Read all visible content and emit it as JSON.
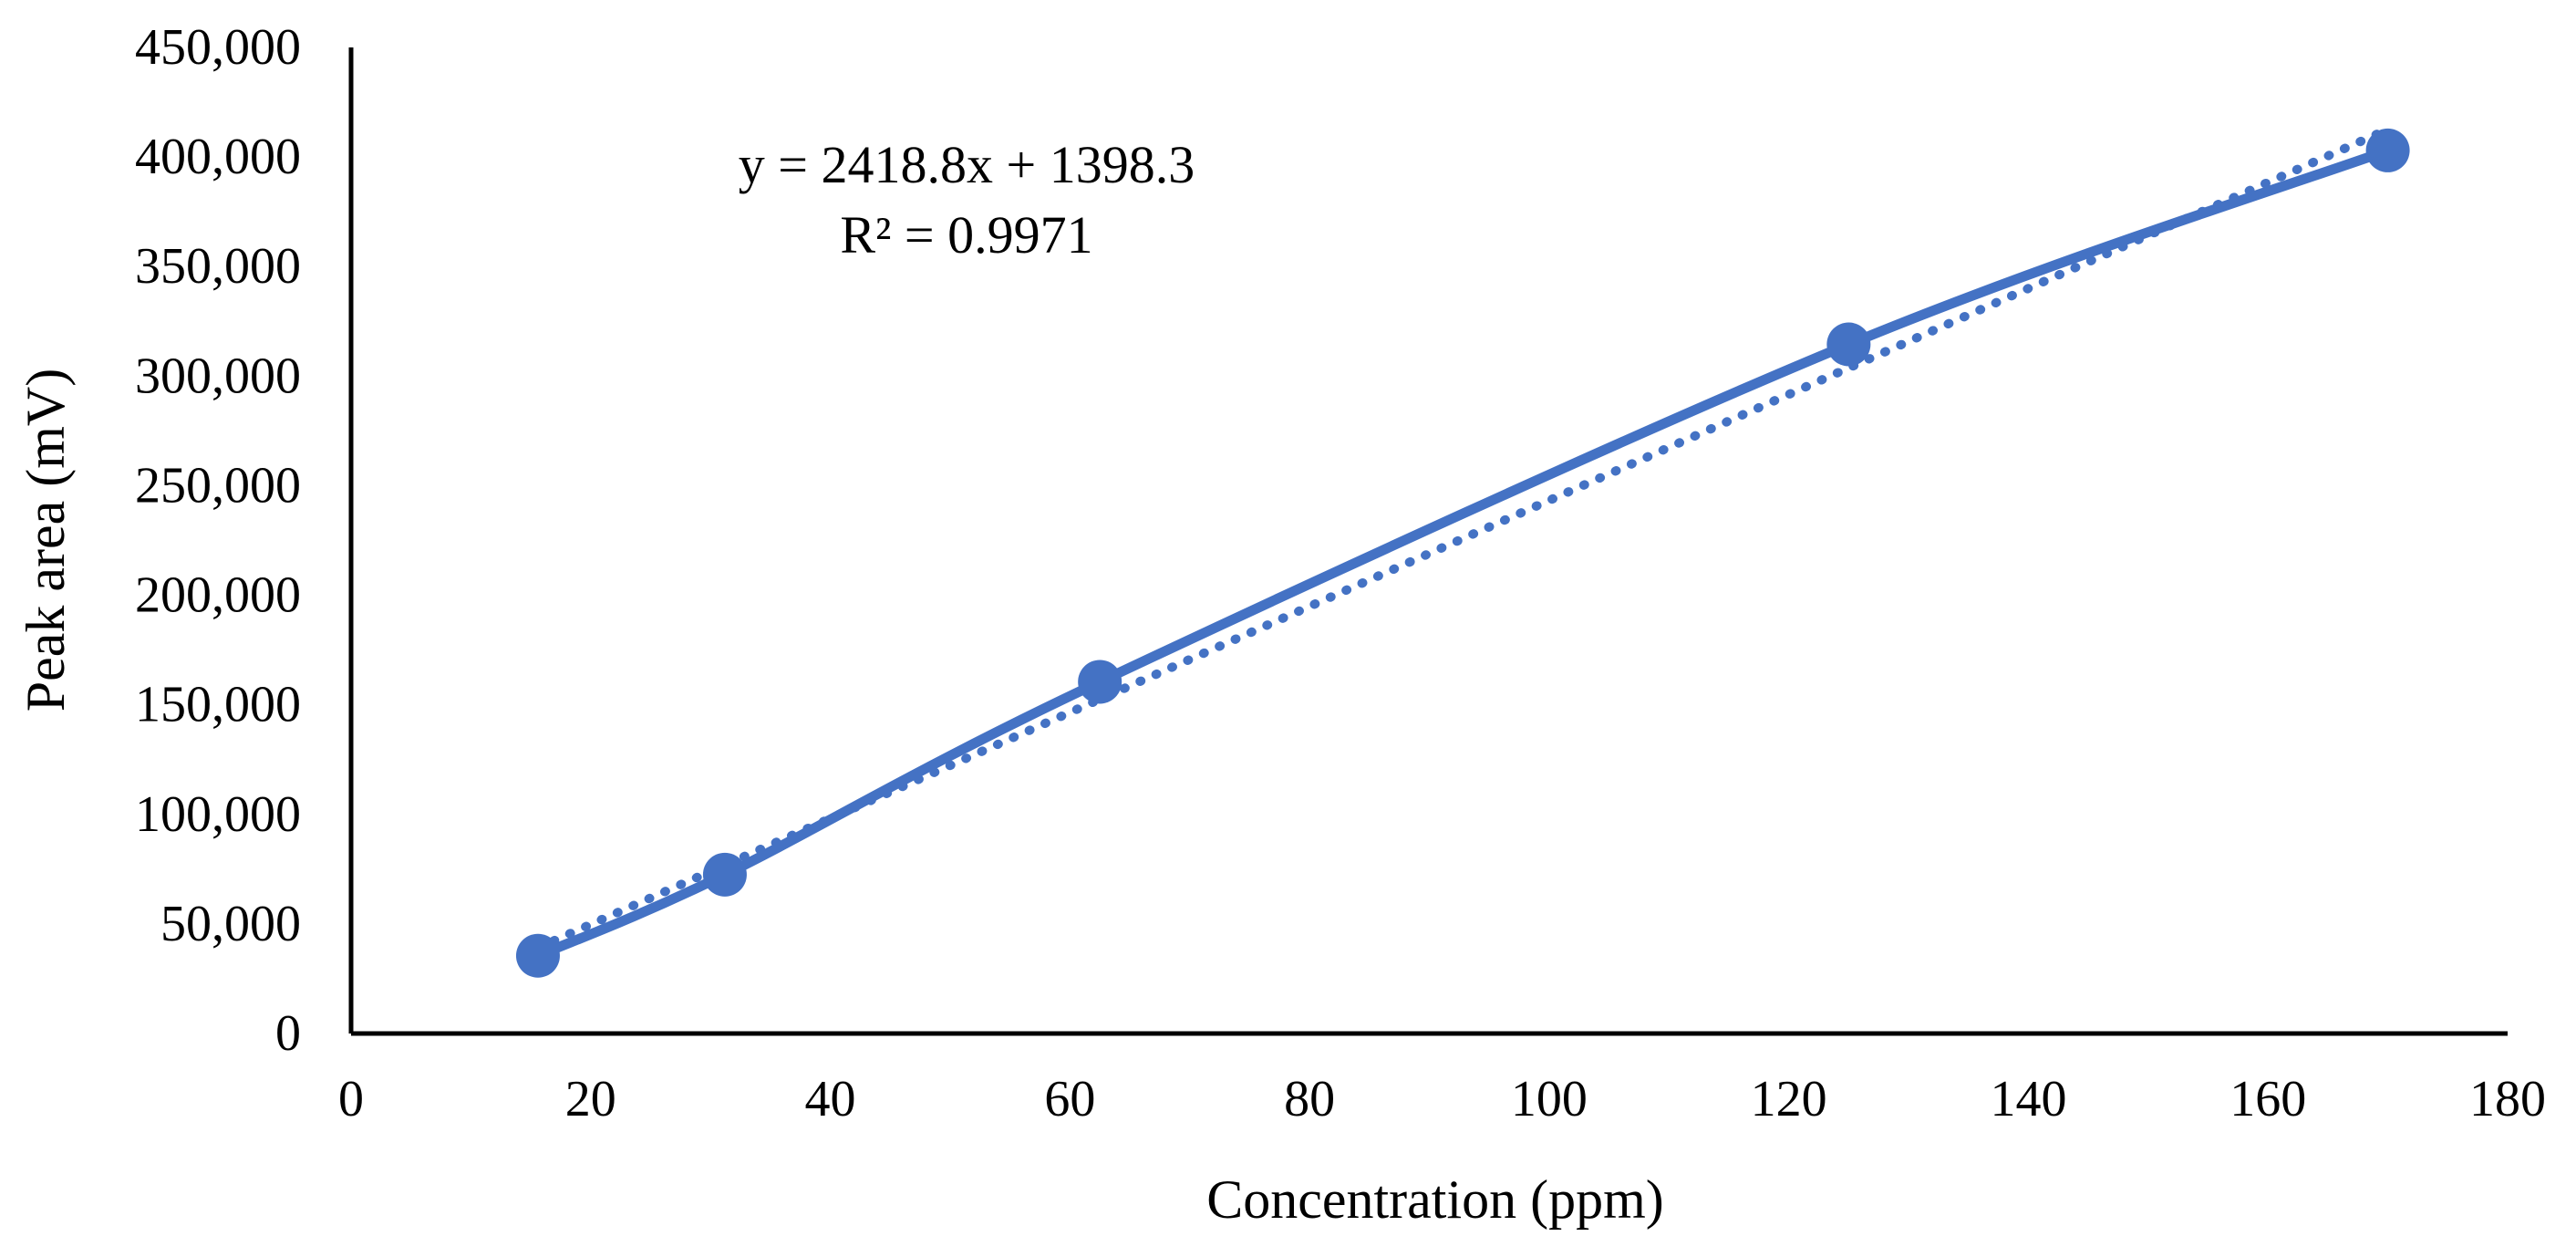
{
  "chart_data": {
    "type": "scatter",
    "title": "",
    "xlabel": "Concentration (ppm)",
    "ylabel": "Peak area (mV)",
    "xlim": [
      0,
      180
    ],
    "ylim": [
      0,
      450000
    ],
    "x_ticks": [
      0,
      20,
      40,
      60,
      80,
      100,
      120,
      140,
      160,
      180
    ],
    "x_tick_labels": [
      "0",
      "20",
      "40",
      "60",
      "80",
      "100",
      "120",
      "140",
      "160",
      "180"
    ],
    "y_ticks": [
      0,
      50000,
      100000,
      150000,
      200000,
      250000,
      300000,
      350000,
      400000,
      450000
    ],
    "y_tick_labels": [
      "0",
      "50,000",
      "100,000",
      "150,000",
      "200,000",
      "250,000",
      "300,000",
      "350,000",
      "400,000",
      "450,000"
    ],
    "grid": false,
    "series": [
      {
        "name": "Peak area",
        "x": [
          15.6,
          31.2,
          62.5,
          125,
          170
        ],
        "y": [
          35500,
          72500,
          160500,
          314500,
          403000
        ],
        "color": "#4472C4",
        "style": "markers with smoothed line"
      }
    ],
    "trendline": {
      "type": "linear",
      "slope": 2418.8,
      "intercept": 1398.3,
      "x_range": [
        15.6,
        170
      ],
      "style": "dotted",
      "color": "#4472C4",
      "equation_text": "y = 2418.8x + 1398.3",
      "r2_text": "R² = 0.9971"
    }
  }
}
